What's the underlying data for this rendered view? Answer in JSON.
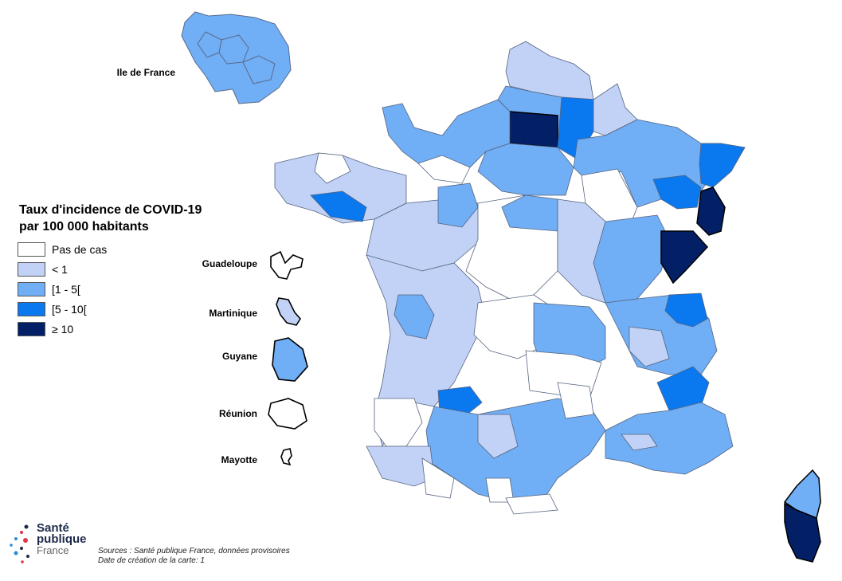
{
  "legend": {
    "title_line1": "Taux d'incidence de COVID-19",
    "title_line2": "par 100 000 habitants",
    "classes": [
      {
        "label": "Pas de cas",
        "color": "#ffffff"
      },
      {
        "label": "< 1",
        "color": "#c2d2f6"
      },
      {
        "label": "[1 - 5[",
        "color": "#70aef5"
      },
      {
        "label": "[5 - 10[",
        "color": "#0a78ee"
      },
      {
        "label": "≥ 10",
        "color": "#032067"
      }
    ]
  },
  "regions": {
    "idf": "Ile de France",
    "guadeloupe": "Guadeloupe",
    "martinique": "Martinique",
    "guyane": "Guyane",
    "reunion": "Réunion",
    "mayotte": "Mayotte"
  },
  "logo": {
    "line1": "Santé",
    "line2": "publique",
    "line3": "France"
  },
  "sources": {
    "line1": "Sources : Santé publique France, données provisoires",
    "line2": "Date de création de la carte: 1"
  }
}
